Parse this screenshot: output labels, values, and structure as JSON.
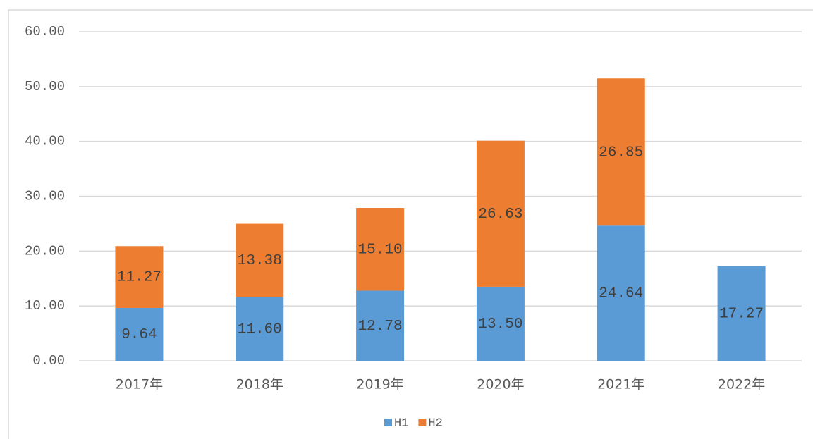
{
  "chart_data": {
    "type": "stacked_bar",
    "categories": [
      "2017年",
      "2018年",
      "2019年",
      "2020年",
      "2021年",
      "2022年"
    ],
    "series": [
      {
        "name": "H1",
        "color": "#5b9bd5",
        "values": [
          9.64,
          11.6,
          12.78,
          13.5,
          24.64,
          17.27
        ],
        "value_labels": [
          "9.64",
          "11.60",
          "12.78",
          "13.50",
          "24.64",
          "17.27"
        ]
      },
      {
        "name": "H2",
        "color": "#ed7d31",
        "values": [
          11.27,
          13.38,
          15.1,
          26.63,
          26.85,
          null
        ],
        "value_labels": [
          "11.27",
          "13.38",
          "15.10",
          "26.63",
          "26.85",
          null
        ]
      }
    ],
    "ylim": [
      0,
      60
    ],
    "yticks": [
      {
        "value": 0,
        "label": "0.00"
      },
      {
        "value": 10,
        "label": "10.00"
      },
      {
        "value": 20,
        "label": "20.00"
      },
      {
        "value": 30,
        "label": "30.00"
      },
      {
        "value": 40,
        "label": "40.00"
      },
      {
        "value": 50,
        "label": "50.00"
      },
      {
        "value": 60,
        "label": "60.00"
      }
    ],
    "grid": true,
    "legend": "bottom"
  }
}
